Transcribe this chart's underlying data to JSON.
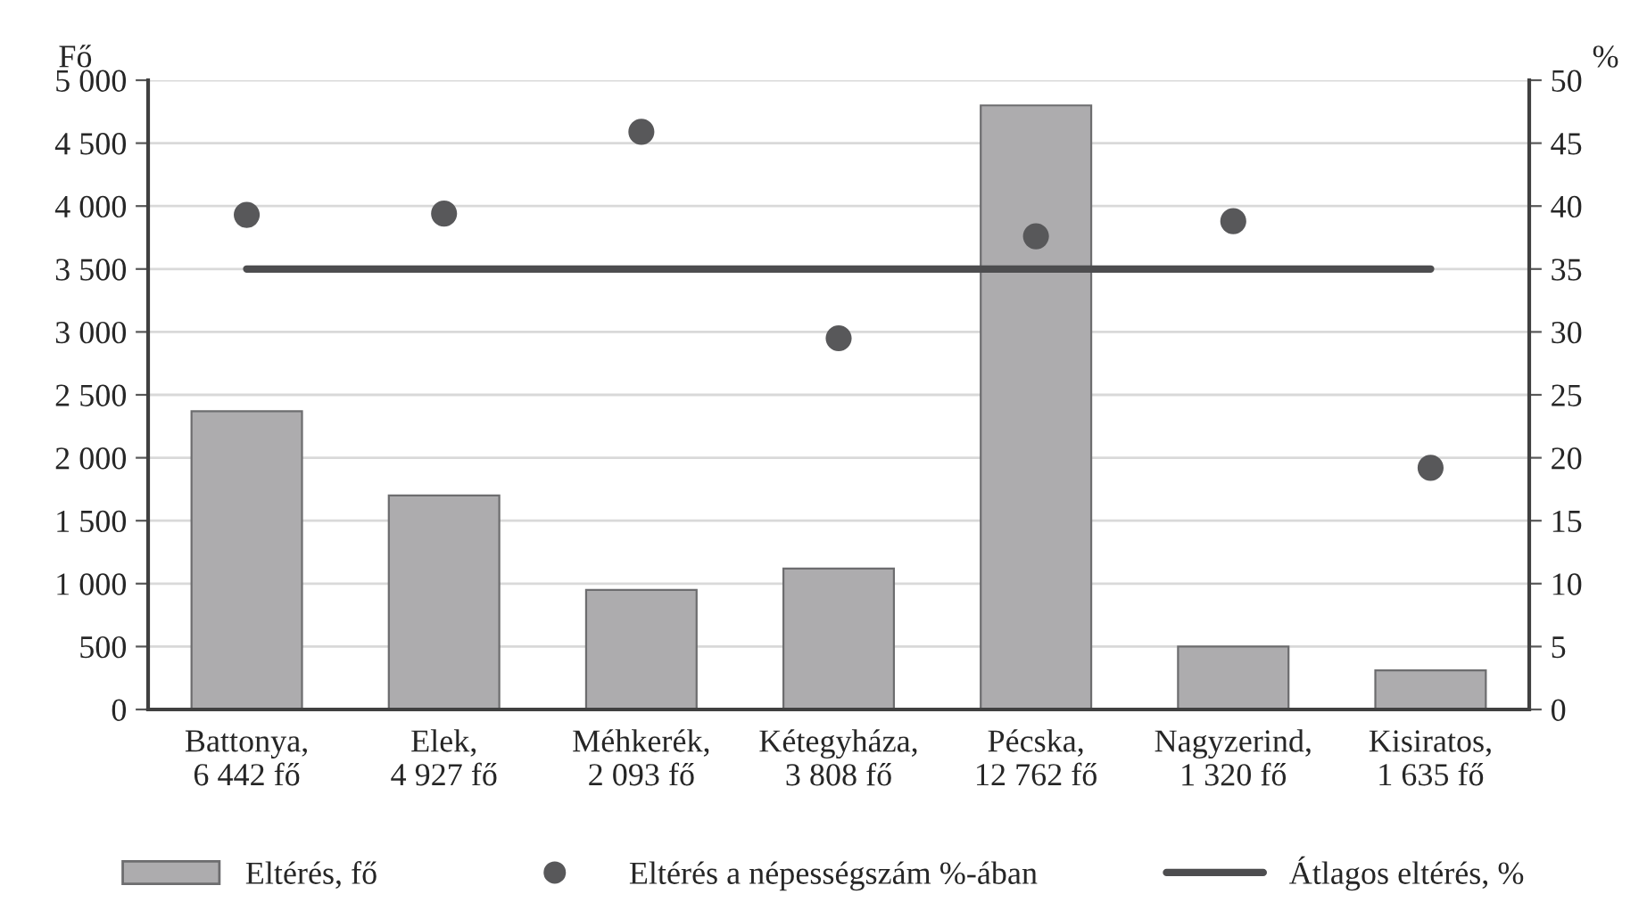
{
  "chart_data": {
    "type": "bar",
    "ylabel": "Fő",
    "y2label": "%",
    "categories": [
      "Battonya,\n6 442 fő",
      "Elek,\n4 927 fő",
      "Méhkerék,\n2 093 fő",
      "Kétegyháza,\n3 808 fő",
      "Pécska,\n12 762 fő",
      "Nagyzerind,\n1 320 fő",
      "Kisiratos,\n1 635 fő"
    ],
    "series": [
      {
        "name": "Eltérés, fő",
        "color": "#adacae",
        "values": [
          2370,
          1700,
          950,
          1120,
          4800,
          500,
          310
        ]
      },
      {
        "name": "Eltérés a népességszám %-ában",
        "type": "scatter",
        "marker": "circle",
        "axis": "y2",
        "color": "#58585a",
        "values": [
          39.3,
          39.4,
          45.9,
          29.5,
          37.6,
          38.8,
          19.2
        ]
      },
      {
        "name": "Átlagos eltérés, %",
        "type": "line",
        "axis": "y2",
        "color": "#4d4d4f",
        "values": [
          35,
          35,
          35,
          35,
          35,
          35,
          35
        ]
      }
    ],
    "ylim": [
      0,
      5000
    ],
    "yticks": [
      0,
      500,
      {
        "value": 1000,
        "label": "1 000"
      },
      {
        "value": 1500,
        "label": "1 500"
      },
      {
        "value": 2000,
        "label": "2 000"
      },
      {
        "value": 2500,
        "label": "2 500"
      },
      {
        "value": 3000,
        "label": "3 000"
      },
      {
        "value": 3500,
        "label": "3 500"
      },
      {
        "value": 4000,
        "label": "4 000"
      },
      {
        "value": 4500,
        "label": "4 500"
      },
      {
        "value": 5000,
        "label": "5 000"
      }
    ],
    "y2lim": [
      0,
      50
    ],
    "y2ticks": [
      0,
      5,
      10,
      15,
      20,
      25,
      30,
      35,
      40,
      45,
      50
    ],
    "grid": "y",
    "legend": "bottom",
    "line_style": "solid"
  }
}
